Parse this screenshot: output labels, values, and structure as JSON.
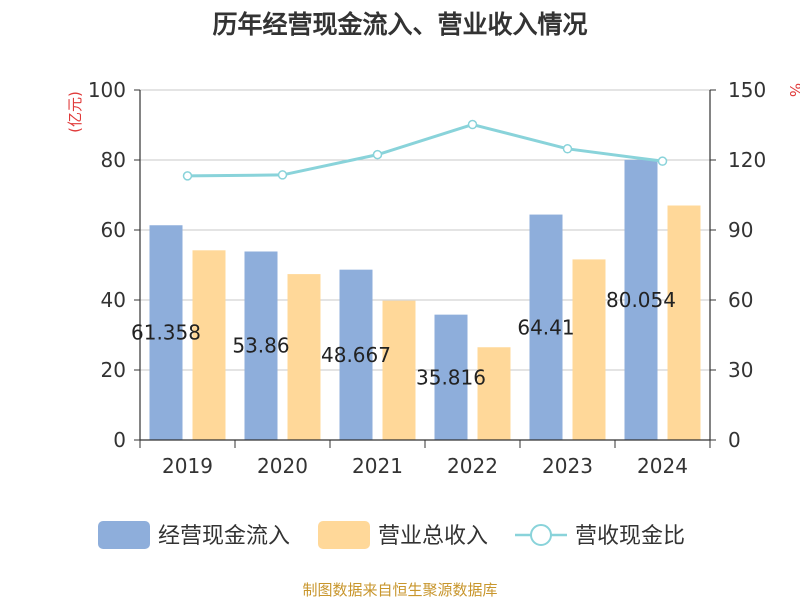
{
  "chart_data": {
    "type": "bar",
    "title": "历年经营现金流入、营业收入情况",
    "categories": [
      "2019",
      "2020",
      "2021",
      "2022",
      "2023",
      "2024"
    ],
    "series": [
      {
        "name": "经营现金流入",
        "type": "bar",
        "axis": "left",
        "color": "#8eaedb",
        "values": [
          61.358,
          53.86,
          48.667,
          35.816,
          64.41,
          80.054
        ],
        "labels": [
          "61.358",
          "53.86",
          "48.667",
          "35.816",
          "64.41",
          "80.054"
        ]
      },
      {
        "name": "营业总收入",
        "type": "bar",
        "axis": "left",
        "color": "#ffd899",
        "values": [
          54.2,
          47.4,
          39.8,
          26.5,
          51.6,
          67.0
        ]
      },
      {
        "name": "营收现金比",
        "type": "line",
        "axis": "right",
        "color": "#89d3da",
        "values": [
          113.2,
          113.6,
          122.3,
          135.2,
          124.8,
          119.5
        ]
      }
    ],
    "y_left": {
      "label": "(亿元)",
      "ylim": [
        0,
        100
      ],
      "ticks": [
        "0",
        "20",
        "40",
        "60",
        "80",
        "100"
      ]
    },
    "y_right": {
      "label": "%",
      "ylim": [
        0,
        150
      ],
      "ticks": [
        "0",
        "30",
        "60",
        "90",
        "120",
        "150"
      ]
    },
    "grid": true,
    "legend_position": "bottom"
  },
  "source": "制图数据来自恒生聚源数据库"
}
